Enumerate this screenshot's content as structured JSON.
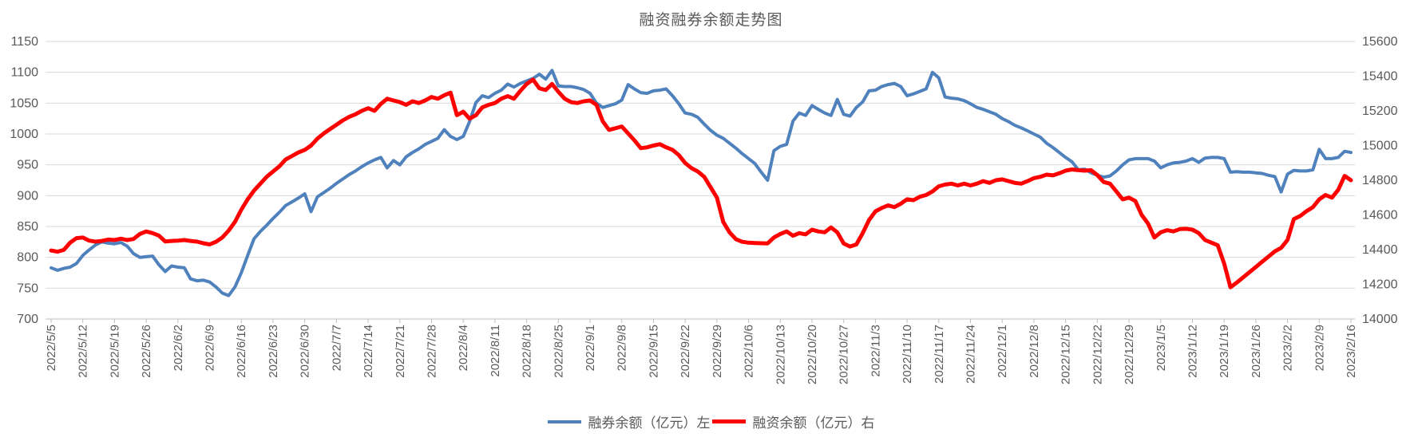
{
  "chart": {
    "title": "融资融券余额走势图",
    "legend": {
      "series1_label": "融券余额（亿元）左",
      "series2_label": "融资余额（亿元）右"
    },
    "colors": {
      "series1": "#4F81BD",
      "series2": "#FF0000",
      "gridline": "#D9D9D9",
      "axis_line": "#BFBFBF",
      "text": "#595959"
    }
  },
  "chart_data": {
    "type": "line",
    "title": "融资融券余额走势图",
    "grid": true,
    "legend_position": "bottom",
    "left_axis": {
      "min": 700,
      "max": 1150,
      "step": 50,
      "labels": [
        "1150",
        "1100",
        "1050",
        "1000",
        "950",
        "900",
        "850",
        "800",
        "750",
        "700"
      ]
    },
    "right_axis": {
      "min": 14000,
      "max": 15600,
      "step": 200,
      "labels": [
        "15600",
        "15400",
        "15200",
        "15000",
        "14800",
        "14600",
        "14400",
        "14200",
        "14000"
      ]
    },
    "x_tick_labels": [
      "2022/5/5",
      "2022/5/12",
      "2022/5/19",
      "2022/5/26",
      "2022/6/2",
      "2022/6/9",
      "2022/6/16",
      "2022/6/23",
      "2022/6/30",
      "2022/7/7",
      "2022/7/14",
      "2022/7/21",
      "2022/7/28",
      "2022/8/4",
      "2022/8/11",
      "2022/8/18",
      "2022/8/25",
      "2022/9/1",
      "2022/9/8",
      "2022/9/15",
      "2022/9/22",
      "2022/9/29",
      "2022/10/6",
      "2022/10/13",
      "2022/10/20",
      "2022/10/27",
      "2022/11/3",
      "2022/11/10",
      "2022/11/17",
      "2022/11/24",
      "2022/12/1",
      "2022/12/8",
      "2022/12/15",
      "2022/12/22",
      "2022/12/29",
      "2023/1/5",
      "2023/1/12",
      "2023/1/19",
      "2023/1/26",
      "2023/2/2",
      "2023/2/9",
      "2023/2/16"
    ],
    "x_dates": [
      "2022/5/5",
      "2022/5/6",
      "2022/5/9",
      "2022/5/10",
      "2022/5/11",
      "2022/5/12",
      "2022/5/13",
      "2022/5/16",
      "2022/5/17",
      "2022/5/18",
      "2022/5/19",
      "2022/5/20",
      "2022/5/23",
      "2022/5/24",
      "2022/5/25",
      "2022/5/26",
      "2022/5/27",
      "2022/5/30",
      "2022/5/31",
      "2022/6/1",
      "2022/6/2",
      "2022/6/3",
      "2022/6/6",
      "2022/6/7",
      "2022/6/8",
      "2022/6/9",
      "2022/6/10",
      "2022/6/13",
      "2022/6/14",
      "2022/6/15",
      "2022/6/16",
      "2022/6/17",
      "2022/6/20",
      "2022/6/21",
      "2022/6/22",
      "2022/6/23",
      "2022/6/24",
      "2022/6/27",
      "2022/6/28",
      "2022/6/29",
      "2022/6/30",
      "2022/7/1",
      "2022/7/4",
      "2022/7/5",
      "2022/7/6",
      "2022/7/7",
      "2022/7/8",
      "2022/7/11",
      "2022/7/12",
      "2022/7/13",
      "2022/7/14",
      "2022/7/15",
      "2022/7/18",
      "2022/7/19",
      "2022/7/20",
      "2022/7/21",
      "2022/7/22",
      "2022/7/25",
      "2022/7/26",
      "2022/7/27",
      "2022/7/28",
      "2022/7/29",
      "2022/8/1",
      "2022/8/2",
      "2022/8/3",
      "2022/8/4",
      "2022/8/5",
      "2022/8/8",
      "2022/8/9",
      "2022/8/10",
      "2022/8/11",
      "2022/8/12",
      "2022/8/15",
      "2022/8/16",
      "2022/8/17",
      "2022/8/18",
      "2022/8/19",
      "2022/8/22",
      "2022/8/23",
      "2022/8/24",
      "2022/8/25",
      "2022/8/26",
      "2022/8/29",
      "2022/8/30",
      "2022/8/31",
      "2022/9/1",
      "2022/9/2",
      "2022/9/5",
      "2022/9/6",
      "2022/9/7",
      "2022/9/8",
      "2022/9/9",
      "2022/9/12",
      "2022/9/13",
      "2022/9/14",
      "2022/9/15",
      "2022/9/16",
      "2022/9/19",
      "2022/9/20",
      "2022/9/21",
      "2022/9/22",
      "2022/9/23",
      "2022/9/26",
      "2022/9/27",
      "2022/9/28",
      "2022/9/29",
      "2022/9/30",
      "2022/10/3",
      "2022/10/4",
      "2022/10/5",
      "2022/10/6",
      "2022/10/7",
      "2022/10/10",
      "2022/10/11",
      "2022/10/12",
      "2022/10/13",
      "2022/10/14",
      "2022/10/17",
      "2022/10/18",
      "2022/10/19",
      "2022/10/20",
      "2022/10/21",
      "2022/10/24",
      "2022/10/25",
      "2022/10/26",
      "2022/10/27",
      "2022/10/28",
      "2022/10/31",
      "2022/11/1",
      "2022/11/2",
      "2022/11/3",
      "2022/11/4",
      "2022/11/7",
      "2022/11/8",
      "2022/11/9",
      "2022/11/10",
      "2022/11/11",
      "2022/11/14",
      "2022/11/15",
      "2022/11/16",
      "2022/11/17",
      "2022/11/18",
      "2022/11/21",
      "2022/11/22",
      "2022/11/23",
      "2022/11/24",
      "2022/11/25",
      "2022/11/28",
      "2022/11/29",
      "2022/11/30",
      "2022/12/1",
      "2022/12/2",
      "2022/12/5",
      "2022/12/6",
      "2022/12/7",
      "2022/12/8",
      "2022/12/9",
      "2022/12/12",
      "2022/12/13",
      "2022/12/14",
      "2022/12/15",
      "2022/12/16",
      "2022/12/19",
      "2022/12/20",
      "2022/12/21",
      "2022/12/22",
      "2022/12/23",
      "2022/12/26",
      "2022/12/27",
      "2022/12/28",
      "2022/12/29",
      "2022/12/30",
      "2023/1/2",
      "2023/1/3",
      "2023/1/4",
      "2023/1/5",
      "2023/1/6",
      "2023/1/9",
      "2023/1/10",
      "2023/1/11",
      "2023/1/12",
      "2023/1/13",
      "2023/1/16",
      "2023/1/17",
      "2023/1/18",
      "2023/1/19",
      "2023/1/20",
      "2023/1/23",
      "2023/1/24",
      "2023/1/25",
      "2023/1/26",
      "2023/1/27",
      "2023/1/30",
      "2023/1/31",
      "2023/2/1",
      "2023/2/2",
      "2023/2/3",
      "2023/2/6",
      "2023/2/7",
      "2023/2/8",
      "2023/2/9",
      "2023/2/10",
      "2023/2/13",
      "2023/2/14",
      "2023/2/15",
      "2023/2/16"
    ],
    "series": [
      {
        "name": "融券余额（亿元）左",
        "axis": "left",
        "color": "#4F81BD",
        "values": [
          783,
          779,
          782,
          784,
          790,
          803,
          812,
          820,
          825,
          823,
          822,
          824,
          818,
          806,
          800,
          801,
          802,
          788,
          777,
          786,
          784,
          783,
          765,
          762,
          763,
          760,
          752,
          742,
          738,
          752,
          775,
          803,
          830,
          842,
          852,
          863,
          873,
          884,
          890,
          896,
          903,
          874,
          898,
          905,
          912,
          920,
          927,
          934,
          940,
          947,
          953,
          958,
          962,
          945,
          957,
          950,
          963,
          970,
          976,
          983,
          988,
          993,
          1007,
          996,
          991,
          996,
          1020,
          1051,
          1062,
          1059,
          1066,
          1071,
          1081,
          1076,
          1082,
          1086,
          1090,
          1097,
          1089,
          1103,
          1078,
          1077,
          1077,
          1075,
          1072,
          1066,
          1050,
          1043,
          1046,
          1049,
          1055,
          1080,
          1073,
          1067,
          1066,
          1070,
          1071,
          1073,
          1062,
          1049,
          1034,
          1032,
          1027,
          1016,
          1006,
          998,
          993,
          985,
          977,
          968,
          960,
          952,
          938,
          925,
          973,
          980,
          983,
          1021,
          1034,
          1030,
          1046,
          1040,
          1034,
          1030,
          1056,
          1032,
          1029,
          1043,
          1052,
          1070,
          1071,
          1077,
          1080,
          1082,
          1077,
          1062,
          1065,
          1069,
          1073,
          1100,
          1091,
          1060,
          1058,
          1057,
          1054,
          1049,
          1043,
          1040,
          1036,
          1032,
          1025,
          1020,
          1014,
          1010,
          1005,
          1000,
          995,
          985,
          978,
          970,
          962,
          955,
          942,
          943,
          937,
          933,
          930,
          932,
          940,
          950,
          958,
          960,
          960,
          960,
          956,
          945,
          950,
          953,
          954,
          956,
          960,
          954,
          961,
          962,
          962,
          960,
          938,
          939,
          938,
          938,
          937,
          936,
          933,
          931,
          906,
          935,
          941,
          940,
          940,
          942,
          975,
          960,
          960,
          962,
          972,
          970
        ]
      },
      {
        "name": "融资余额（亿元）右",
        "axis": "right",
        "color": "#FF0000",
        "values": [
          14395,
          14388,
          14398,
          14440,
          14466,
          14470,
          14452,
          14446,
          14450,
          14458,
          14455,
          14463,
          14455,
          14461,
          14490,
          14505,
          14495,
          14481,
          14447,
          14450,
          14452,
          14455,
          14450,
          14446,
          14437,
          14430,
          14445,
          14470,
          14510,
          14560,
          14630,
          14690,
          14740,
          14780,
          14820,
          14850,
          14880,
          14920,
          14940,
          14960,
          14975,
          15000,
          15040,
          15070,
          15095,
          15120,
          15145,
          15165,
          15180,
          15200,
          15215,
          15200,
          15240,
          15270,
          15260,
          15250,
          15235,
          15255,
          15245,
          15260,
          15280,
          15270,
          15290,
          15305,
          15175,
          15195,
          15155,
          15175,
          15220,
          15235,
          15245,
          15270,
          15285,
          15270,
          15315,
          15355,
          15380,
          15330,
          15320,
          15355,
          15310,
          15270,
          15250,
          15245,
          15255,
          15260,
          15235,
          15140,
          15090,
          15100,
          15110,
          15070,
          15030,
          14985,
          14990,
          15000,
          15008,
          14990,
          14975,
          14945,
          14900,
          14870,
          14850,
          14820,
          14760,
          14700,
          14560,
          14500,
          14460,
          14445,
          14440,
          14438,
          14437,
          14436,
          14470,
          14490,
          14505,
          14480,
          14495,
          14488,
          14515,
          14505,
          14500,
          14528,
          14500,
          14435,
          14418,
          14430,
          14495,
          14570,
          14620,
          14640,
          14655,
          14645,
          14665,
          14690,
          14685,
          14705,
          14715,
          14735,
          14765,
          14775,
          14780,
          14770,
          14780,
          14770,
          14780,
          14795,
          14785,
          14800,
          14805,
          14795,
          14785,
          14780,
          14795,
          14812,
          14820,
          14832,
          14828,
          14840,
          14855,
          14862,
          14858,
          14855,
          14858,
          14830,
          14790,
          14780,
          14735,
          14690,
          14700,
          14680,
          14600,
          14550,
          14470,
          14500,
          14512,
          14505,
          14518,
          14520,
          14515,
          14495,
          14455,
          14440,
          14425,
          14320,
          14183,
          14210,
          14240,
          14270,
          14300,
          14330,
          14360,
          14390,
          14410,
          14456,
          14576,
          14594,
          14622,
          14645,
          14690,
          14715,
          14700,
          14745,
          14825,
          14800
        ]
      }
    ]
  }
}
